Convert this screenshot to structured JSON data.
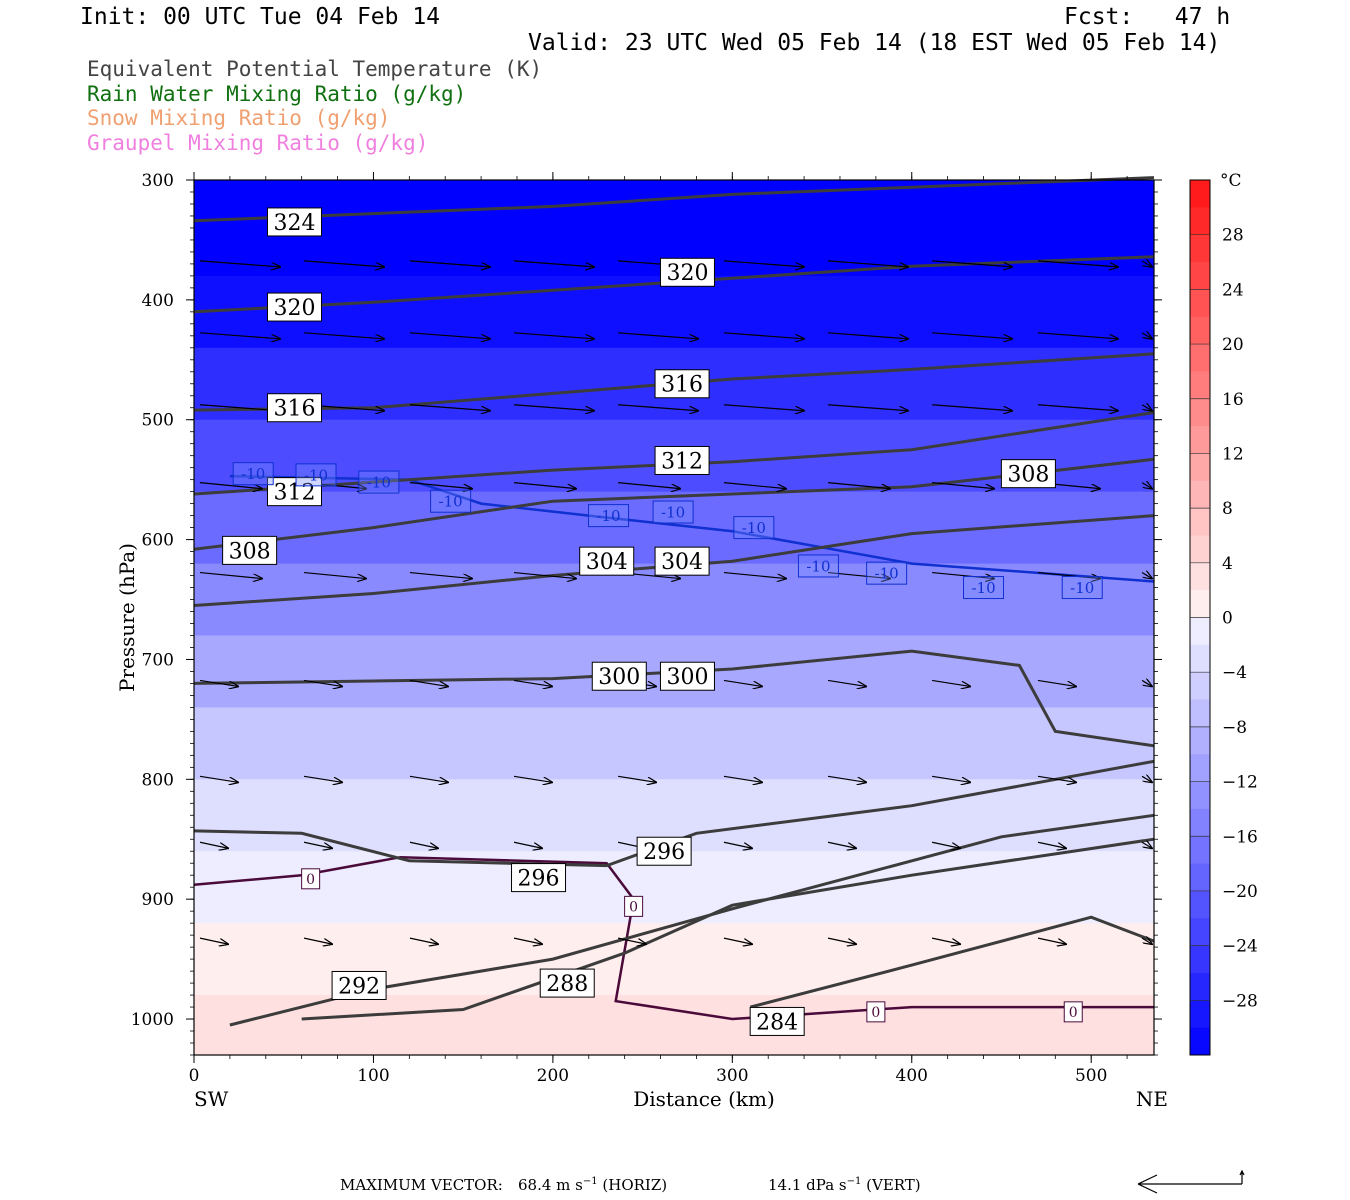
{
  "header": {
    "init": "Init: 00 UTC Tue 04 Feb 14",
    "fcst": "Fcst:   47 h",
    "valid": "Valid: 23 UTC Wed 05 Feb 14 (18 EST Wed 05 Feb 14)"
  },
  "legend": [
    {
      "label": "Equivalent Potential Temperature (K)",
      "color": "#444444"
    },
    {
      "label": "Rain Water Mixing Ratio (g/kg)",
      "color": "#107010"
    },
    {
      "label": "Snow Mixing Ratio (g/kg)",
      "color": "#f0a070"
    },
    {
      "label": "Graupel Mixing Ratio (g/kg)",
      "color": "#f080e0"
    }
  ],
  "footer": {
    "max_vector_label": "MAXIMUM VECTOR:",
    "horiz_value": "68.4 m s",
    "horiz_unit": "(HORIZ)",
    "vert_value": "14.1 dPa s",
    "vert_unit": "(VERT)"
  },
  "chart_data": {
    "type": "heatmap",
    "xlabel": "Distance (km)",
    "ylabel": "Pressure (hPa)",
    "xlim": [
      0,
      535
    ],
    "ylim": [
      1030,
      300
    ],
    "x_ticks": [
      0,
      100,
      200,
      300,
      400,
      500
    ],
    "y_ticks": [
      300,
      400,
      500,
      600,
      700,
      800,
      900,
      1000
    ],
    "x_end_labels": {
      "left": "SW",
      "right": "NE"
    },
    "colorbar": {
      "unit": "°C",
      "tick_labels": [
        28,
        24,
        20,
        16,
        12,
        8,
        4,
        0,
        -4,
        -8,
        -12,
        -16,
        -20,
        -24,
        -28
      ],
      "range": [
        -32,
        32
      ]
    },
    "temperature_bands": [
      {
        "p": 300,
        "t": -32
      },
      {
        "p": 380,
        "t": -30
      },
      {
        "p": 440,
        "t": -26
      },
      {
        "p": 500,
        "t": -22
      },
      {
        "p": 560,
        "t": -18
      },
      {
        "p": 620,
        "t": -14
      },
      {
        "p": 680,
        "t": -10
      },
      {
        "p": 740,
        "t": -6
      },
      {
        "p": 800,
        "t": -3
      },
      {
        "p": 860,
        "t": -1
      },
      {
        "p": 920,
        "t": 1
      },
      {
        "p": 980,
        "t": 3
      },
      {
        "p": 1030,
        "t": 4
      }
    ],
    "theta_e_contours": [
      {
        "value": 324,
        "points": [
          [
            0,
            334
          ],
          [
            100,
            328
          ],
          [
            200,
            322
          ],
          [
            300,
            312
          ],
          [
            400,
            306
          ],
          [
            535,
            298
          ]
        ],
        "label_at": [
          56,
          335
        ]
      },
      {
        "value": 320,
        "points": [
          [
            0,
            410
          ],
          [
            100,
            402
          ],
          [
            200,
            392
          ],
          [
            300,
            382
          ],
          [
            400,
            372
          ],
          [
            535,
            364
          ]
        ],
        "label_at": [
          56,
          406
        ]
      },
      {
        "value": 320,
        "points": [],
        "label_at": [
          275,
          377
        ]
      },
      {
        "value": 316,
        "points": [
          [
            0,
            492
          ],
          [
            100,
            490
          ],
          [
            200,
            478
          ],
          [
            300,
            466
          ],
          [
            400,
            458
          ],
          [
            535,
            445
          ]
        ],
        "label_at": [
          56,
          490
        ]
      },
      {
        "value": 316,
        "points": [],
        "label_at": [
          272,
          470
        ]
      },
      {
        "value": 312,
        "points": [
          [
            0,
            562
          ],
          [
            100,
            552
          ],
          [
            200,
            542
          ],
          [
            300,
            535
          ],
          [
            400,
            525
          ],
          [
            535,
            494
          ]
        ],
        "label_at": [
          56,
          560
        ]
      },
      {
        "value": 312,
        "points": [],
        "label_at": [
          272,
          534
        ]
      },
      {
        "value": 308,
        "points": [
          [
            0,
            608
          ],
          [
            100,
            590
          ],
          [
            200,
            568
          ],
          [
            300,
            562
          ],
          [
            400,
            556
          ],
          [
            535,
            533
          ]
        ],
        "label_at": [
          31,
          609
        ]
      },
      {
        "value": 308,
        "points": [],
        "label_at": [
          465,
          545
        ]
      },
      {
        "value": 304,
        "points": [
          [
            0,
            655
          ],
          [
            100,
            645
          ],
          [
            200,
            630
          ],
          [
            300,
            618
          ],
          [
            400,
            595
          ],
          [
            535,
            580
          ]
        ],
        "label_at": [
          230,
          618
        ]
      },
      {
        "value": 304,
        "points": [],
        "label_at": [
          272,
          618
        ]
      },
      {
        "value": 300,
        "points": [
          [
            0,
            720
          ],
          [
            100,
            718
          ],
          [
            200,
            716
          ],
          [
            300,
            708
          ],
          [
            400,
            693
          ],
          [
            460,
            705
          ],
          [
            480,
            760
          ],
          [
            535,
            772
          ]
        ],
        "label_at": [
          237,
          714
        ]
      },
      {
        "value": 300,
        "points": [],
        "label_at": [
          275,
          714
        ]
      },
      {
        "value": 296,
        "points": [
          [
            0,
            843
          ],
          [
            60,
            845
          ],
          [
            120,
            868
          ],
          [
            230,
            872
          ],
          [
            280,
            845
          ],
          [
            400,
            822
          ],
          [
            535,
            785
          ]
        ],
        "label_at": [
          262,
          860
        ]
      },
      {
        "value": 296,
        "points": [],
        "label_at": [
          192,
          882
        ]
      },
      {
        "value": 292,
        "points": [
          [
            20,
            1005
          ],
          [
            100,
            975
          ],
          [
            200,
            950
          ],
          [
            300,
            908
          ],
          [
            450,
            848
          ],
          [
            535,
            830
          ]
        ],
        "label_at": [
          92,
          972
        ]
      },
      {
        "value": 288,
        "points": [
          [
            60,
            1000
          ],
          [
            150,
            992
          ],
          [
            240,
            945
          ],
          [
            300,
            905
          ],
          [
            400,
            880
          ],
          [
            535,
            850
          ]
        ],
        "label_at": [
          208,
          970
        ]
      },
      {
        "value": 284,
        "points": [
          [
            310,
            990
          ],
          [
            400,
            955
          ],
          [
            500,
            915
          ],
          [
            535,
            935
          ]
        ],
        "label_at": [
          325,
          1002
        ]
      }
    ],
    "isotherm_minus10": {
      "value": -10,
      "points": [
        [
          20,
          547
        ],
        [
          120,
          550
        ],
        [
          160,
          570
        ],
        [
          220,
          580
        ],
        [
          300,
          593
        ],
        [
          400,
          620
        ],
        [
          535,
          635
        ]
      ],
      "label_positions": [
        [
          33,
          545
        ],
        [
          68,
          546
        ],
        [
          103,
          552
        ],
        [
          143,
          568
        ],
        [
          231,
          580
        ],
        [
          267,
          577
        ],
        [
          312,
          590
        ],
        [
          348,
          622
        ],
        [
          386,
          628
        ],
        [
          440,
          640
        ],
        [
          495,
          640
        ]
      ]
    },
    "isotherm_zero": {
      "value": 0,
      "points": [
        [
          0,
          888
        ],
        [
          60,
          880
        ],
        [
          115,
          865
        ],
        [
          230,
          870
        ],
        [
          245,
          900
        ],
        [
          235,
          985
        ],
        [
          300,
          1000
        ],
        [
          400,
          990
        ],
        [
          500,
          990
        ],
        [
          535,
          990
        ]
      ],
      "label_positions": [
        [
          65,
          883
        ],
        [
          245,
          906
        ],
        [
          380,
          994
        ],
        [
          490,
          994
        ]
      ]
    },
    "wind_vectors": [
      {
        "rows_p": [
          370,
          430,
          490,
          555,
          630,
          720,
          800,
          855,
          935
        ],
        "x_km": [
          0,
          58,
          117,
          175,
          233,
          292,
          350,
          408,
          467,
          525
        ]
      }
    ]
  }
}
